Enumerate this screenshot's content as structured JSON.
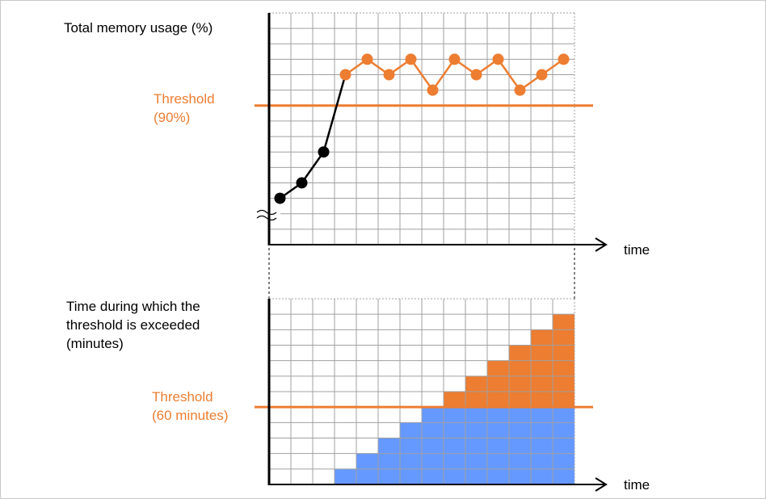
{
  "colors": {
    "accent": "#ed7d31",
    "below_threshold": "#6699ff",
    "line_before": "#000000",
    "grid": "#a0a0a0"
  },
  "chart_data": [
    {
      "type": "line",
      "ylabel": "Total memory usage (%)",
      "xlabel": "time",
      "threshold_label": "Threshold\n(90%)",
      "threshold": 9,
      "axis_break": true,
      "grid": true,
      "ylim": [
        0,
        15
      ],
      "x": [
        1,
        2,
        3,
        4,
        5,
        6,
        7,
        8,
        9,
        10,
        11,
        12,
        13,
        14
      ],
      "values": [
        3,
        4,
        6,
        11,
        12,
        11,
        12,
        10,
        12,
        11,
        12,
        10,
        11,
        12
      ]
    },
    {
      "type": "bar",
      "ylabel": "Time during which the\nthreshold is exceeded\n(minutes)",
      "xlabel": "time",
      "threshold_label": "Threshold\n(60 minutes)",
      "threshold": 5,
      "grid": true,
      "ylim": [
        0,
        12
      ],
      "x": [
        1,
        2,
        3,
        4,
        5,
        6,
        7,
        8,
        9,
        10,
        11,
        12,
        13,
        14
      ],
      "values": [
        0,
        0,
        0,
        1,
        2,
        3,
        4,
        5,
        6,
        7,
        8,
        9,
        10,
        11
      ]
    }
  ]
}
